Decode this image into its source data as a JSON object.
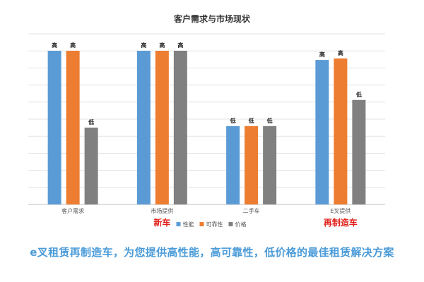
{
  "chart_data": {
    "type": "bar",
    "title": "客户需求与市场现状",
    "categories": [
      "客户需求",
      "市场提供",
      "二手车",
      "E叉提供"
    ],
    "series": [
      {
        "name": "性能",
        "color": "#5b9bd5",
        "values": [
          100,
          100,
          51,
          94
        ],
        "labels": [
          "高",
          "高",
          "低",
          "高"
        ]
      },
      {
        "name": "可靠性",
        "color": "#ed7d31",
        "values": [
          100,
          100,
          51,
          95
        ],
        "labels": [
          "高",
          "高",
          "低",
          "高"
        ]
      },
      {
        "name": "价格",
        "color": "#808080",
        "values": [
          50,
          100,
          51,
          68
        ],
        "labels": [
          "低",
          "高",
          "低",
          "低"
        ]
      }
    ],
    "ylim": [
      0,
      100
    ],
    "grid": true,
    "legend": "bottom",
    "annotations": [
      {
        "text": "新车",
        "category_index": 1
      },
      {
        "text": "再制造车",
        "category_index": 3
      }
    ]
  },
  "footer": {
    "tagline": "e叉租赁再制造车，为您提供高性能，高可靠性，低价格的最佳租赁解决方案"
  }
}
